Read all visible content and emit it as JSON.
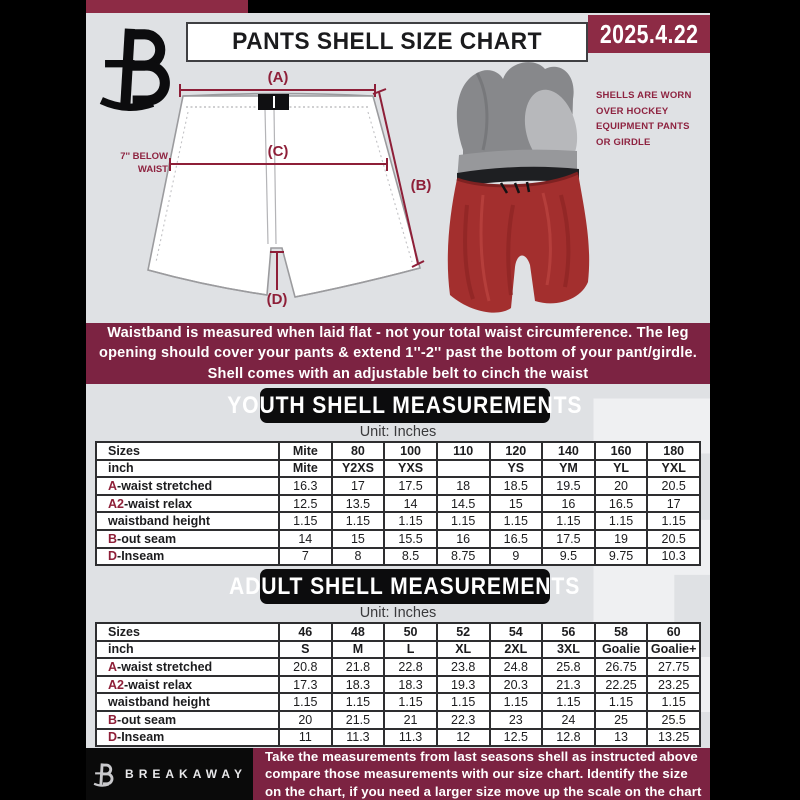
{
  "header": {
    "title": "PANTS SHELL SIZE CHART",
    "date": "2025.4.22"
  },
  "diagram": {
    "label_a": "(A)",
    "label_b": "(B)",
    "label_c": "(C)",
    "label_d": "(D)",
    "note_line1": "7'' BELOW",
    "note_line2": "WAIST",
    "side_note": "SHELLS ARE WORN\nOVER HOCKEY\nEQUIPMENT PANTS\nOR GIRDLE"
  },
  "info_banner": "Waistband is measured when laid flat - not your total waist circumference. The leg\nopening should cover your pants & extend 1''-2'' past the bottom of your pant/girdle.\nShell comes with an adjustable belt to cinch the waist",
  "youth": {
    "heading": "YOUTH SHELL MEASUREMENTS",
    "unit": "Unit: Inches",
    "rows": [
      {
        "prefix": "",
        "label": "Sizes",
        "values": [
          "Mite",
          "80",
          "100",
          "110",
          "120",
          "140",
          "160",
          "180"
        ]
      },
      {
        "prefix": "",
        "label": "inch",
        "values": [
          "Mite",
          "Y2XS",
          "YXS",
          "",
          "YS",
          "YM",
          "YL",
          "YXL"
        ]
      },
      {
        "prefix": "A",
        "label": "-waist stretched",
        "values": [
          "16.3",
          "17",
          "17.5",
          "18",
          "18.5",
          "19.5",
          "20",
          "20.5"
        ]
      },
      {
        "prefix": "A2",
        "label": "-waist relax",
        "values": [
          "12.5",
          "13.5",
          "14",
          "14.5",
          "15",
          "16",
          "16.5",
          "17"
        ]
      },
      {
        "prefix": "",
        "label": "waistband height",
        "values": [
          "1.15",
          "1.15",
          "1.15",
          "1.15",
          "1.15",
          "1.15",
          "1.15",
          "1.15"
        ]
      },
      {
        "prefix": "B",
        "label": "-out seam",
        "values": [
          "14",
          "15",
          "15.5",
          "16",
          "16.5",
          "17.5",
          "19",
          "20.5"
        ]
      },
      {
        "prefix": "D",
        "label": "-Inseam",
        "values": [
          "7",
          "8",
          "8.5",
          "8.75",
          "9",
          "9.5",
          "9.75",
          "10.3"
        ]
      }
    ]
  },
  "adult": {
    "heading": "ADULT SHELL MEASUREMENTS",
    "unit": "Unit: Inches",
    "rows": [
      {
        "prefix": "",
        "label": "Sizes",
        "values": [
          "46",
          "48",
          "50",
          "52",
          "54",
          "56",
          "58",
          "60"
        ]
      },
      {
        "prefix": "",
        "label": "inch",
        "values": [
          "S",
          "M",
          "L",
          "XL",
          "2XL",
          "3XL",
          "Goalie",
          "Goalie+"
        ]
      },
      {
        "prefix": "A",
        "label": "-waist stretched",
        "values": [
          "20.8",
          "21.8",
          "22.8",
          "23.8",
          "24.8",
          "25.8",
          "26.75",
          "27.75"
        ]
      },
      {
        "prefix": "A2",
        "label": "-waist relax",
        "values": [
          "17.3",
          "18.3",
          "18.3",
          "19.3",
          "20.3",
          "21.3",
          "22.25",
          "23.25"
        ]
      },
      {
        "prefix": "",
        "label": "waistband height",
        "values": [
          "1.15",
          "1.15",
          "1.15",
          "1.15",
          "1.15",
          "1.15",
          "1.15",
          "1.15"
        ]
      },
      {
        "prefix": "B",
        "label": "-out seam",
        "values": [
          "20",
          "21.5",
          "21",
          "22.3",
          "23",
          "24",
          "25",
          "25.5"
        ]
      },
      {
        "prefix": "D",
        "label": "-Inseam",
        "values": [
          "11",
          "11.3",
          "11.3",
          "12",
          "12.5",
          "12.8",
          "13",
          "13.25"
        ]
      }
    ]
  },
  "watermark_letter": "B",
  "footer": {
    "brand": "BREAKAWAY",
    "text": "Take the measurements from last seasons shell as instructed above\ncompare those measurements  with our size chart. Identify the size\non the chart, if you need a larger size move up the scale on the chart"
  },
  "colors": {
    "maroon_dark": "#7c2342",
    "maroon_mid": "#8d2b45",
    "diagram_red": "#8e1f38",
    "shell_red": "#a32f2e",
    "background_gray": "#dfe1e4",
    "table_border": "#2e2e30"
  }
}
